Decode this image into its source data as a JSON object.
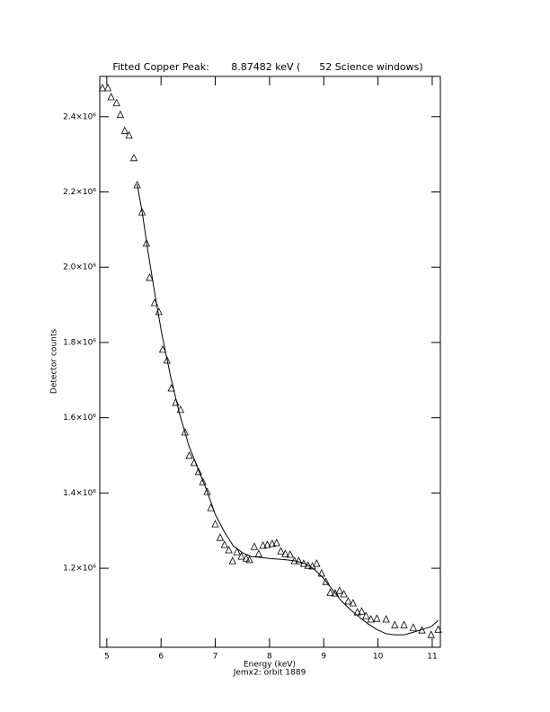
{
  "chart_data": {
    "type": "scatter",
    "title": "Fitted Copper Peak:       8.87482 keV (      52 Science windows)",
    "xlabel": "Energy (keV)",
    "x_note": "Jemx2: orbit 1889",
    "ylabel": "Detector counts",
    "xlim": [
      4.87,
      11.15
    ],
    "ylim": [
      990000,
      2507000
    ],
    "xticks": [
      5,
      6,
      7,
      8,
      9,
      10,
      11
    ],
    "yticks": [
      {
        "value": 1200000,
        "label": "1.2×10⁶"
      },
      {
        "value": 1400000,
        "label": "1.4×10⁶"
      },
      {
        "value": 1600000,
        "label": "1.6×10⁶"
      },
      {
        "value": 1800000,
        "label": "1.8×10⁶"
      },
      {
        "value": 2000000,
        "label": "2.0×10⁶"
      },
      {
        "value": 2200000,
        "label": "2.2×10⁶"
      },
      {
        "value": 2400000,
        "label": "2.4×10⁶"
      }
    ],
    "series": [
      {
        "marker": "triangle",
        "color": "#000000",
        "x": [
          4.92,
          5.02,
          5.08,
          5.18,
          5.25,
          5.33,
          5.41,
          5.5,
          5.56,
          5.65,
          5.73,
          5.79,
          5.88,
          5.96,
          6.03,
          6.11,
          6.19,
          6.27,
          6.36,
          6.44,
          6.52,
          6.61,
          6.69,
          6.77,
          6.85,
          6.92,
          7.0,
          7.09,
          7.17,
          7.25,
          7.32,
          7.4,
          7.48,
          7.57,
          7.63,
          7.72,
          7.8,
          7.88,
          7.96,
          8.05,
          8.13,
          8.21,
          8.29,
          8.38,
          8.46,
          8.54,
          8.63,
          8.71,
          8.79,
          8.87,
          8.96,
          9.04,
          9.12,
          9.21,
          9.29,
          9.37,
          9.45,
          9.54,
          9.62,
          9.7,
          9.78,
          9.87,
          9.98,
          10.15,
          10.31,
          10.48,
          10.65,
          10.81,
          10.98,
          11.11
        ],
        "values": [
          2476000,
          2476000,
          2452000,
          2436000,
          2405000,
          2362000,
          2350000,
          2290000,
          2218000,
          2146000,
          2063000,
          1972000,
          1905000,
          1881000,
          1781000,
          1752000,
          1678000,
          1640000,
          1621000,
          1561000,
          1499000,
          1480000,
          1456000,
          1429000,
          1403000,
          1360000,
          1317000,
          1281000,
          1262000,
          1248000,
          1219000,
          1243000,
          1231000,
          1226000,
          1222000,
          1257000,
          1238000,
          1260000,
          1262000,
          1265000,
          1267000,
          1245000,
          1238000,
          1236000,
          1219000,
          1219000,
          1212000,
          1207000,
          1205000,
          1212000,
          1186000,
          1164000,
          1135000,
          1133000,
          1140000,
          1131000,
          1112000,
          1107000,
          1083000,
          1085000,
          1073000,
          1064000,
          1066000,
          1064000,
          1049000,
          1049000,
          1042000,
          1035000,
          1023000,
          1037000
        ]
      },
      {
        "style": "line",
        "color": "#000000",
        "x": [
          5.56,
          5.65,
          5.76,
          5.88,
          6.01,
          6.18,
          6.34,
          6.51,
          6.67,
          6.84,
          7.0,
          7.17,
          7.33,
          7.5,
          7.67,
          7.83,
          8.0,
          8.16,
          8.33,
          8.49,
          8.66,
          8.82,
          8.99,
          9.16,
          9.32,
          9.49,
          9.65,
          9.82,
          9.98,
          10.15,
          10.31,
          10.48,
          10.65,
          10.81,
          10.98,
          11.11
        ],
        "values": [
          2220000,
          2149000,
          2041000,
          1934000,
          1826000,
          1707000,
          1611000,
          1527000,
          1468000,
          1408000,
          1343000,
          1296000,
          1260000,
          1241000,
          1231000,
          1229000,
          1226000,
          1224000,
          1222000,
          1219000,
          1212000,
          1198000,
          1174000,
          1143000,
          1114000,
          1090000,
          1071000,
          1052000,
          1037000,
          1026000,
          1023000,
          1023000,
          1030000,
          1037000,
          1045000,
          1061000
        ]
      }
    ]
  }
}
